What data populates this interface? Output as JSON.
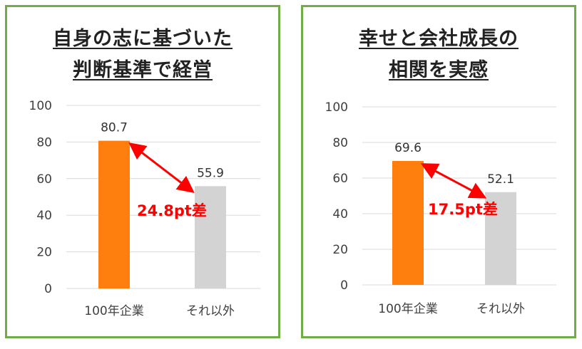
{
  "chart_data": [
    {
      "type": "bar",
      "title": [
        "自身の志に基づいた",
        "判断基準で経営"
      ],
      "categories": [
        "100年企業",
        "それ以外"
      ],
      "values": [
        80.7,
        55.9
      ],
      "bar_colors": [
        "#ff7f0e",
        "#d3d3d3"
      ],
      "ylim": [
        0,
        100
      ],
      "yticks": [
        0,
        20,
        40,
        60,
        80,
        100
      ],
      "grid": true,
      "annotation": "24.8pt差"
    },
    {
      "type": "bar",
      "title": [
        "幸せと会社成長の",
        "相関を実感"
      ],
      "categories": [
        "100年企業",
        "それ以外"
      ],
      "values": [
        69.6,
        52.1
      ],
      "bar_colors": [
        "#ff7f0e",
        "#d3d3d3"
      ],
      "ylim": [
        0,
        100
      ],
      "yticks": [
        0,
        20,
        40,
        60,
        80,
        100
      ],
      "grid": true,
      "annotation": "17.5pt差"
    }
  ],
  "colors": {
    "panel_border": "#70ad47",
    "arrow": "#ff0000",
    "gridline": "#d9d9d9"
  }
}
